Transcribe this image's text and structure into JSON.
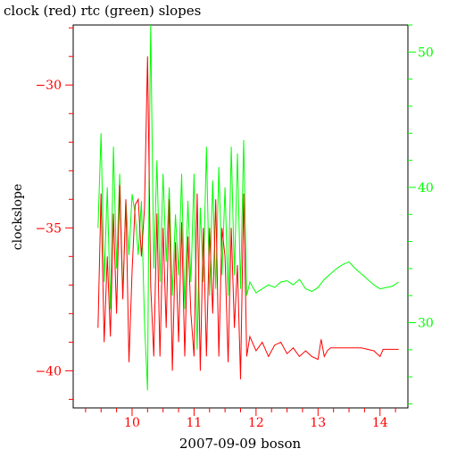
{
  "chart_data": {
    "type": "line",
    "title": "clock (red) rtc (green) slopes",
    "xlabel": "2007-09-09 boson",
    "ylabel": "clockslope",
    "x_ticks": [
      "10",
      "11",
      "12",
      "13",
      "14"
    ],
    "y_left_ticks": [
      "−30",
      "−35",
      "−40"
    ],
    "y_right_ticks": [
      "50",
      "40",
      "30"
    ],
    "xlim": [
      9.05,
      14.45
    ],
    "ylim_left": [
      -41.3,
      -27.9
    ],
    "ylim_right": [
      23.7,
      52.0
    ],
    "grid": false,
    "colors": {
      "left": "#ff0000",
      "right": "#00ff00",
      "x": "#ff0000"
    },
    "series": [
      {
        "name": "clock",
        "axis": "left",
        "color": "#ff0000",
        "x": [
          9.45,
          9.5,
          9.55,
          9.6,
          9.65,
          9.7,
          9.75,
          9.8,
          9.85,
          9.9,
          9.95,
          10.0,
          10.05,
          10.1,
          10.15,
          10.2,
          10.25,
          10.3,
          10.35,
          10.4,
          10.45,
          10.5,
          10.55,
          10.6,
          10.65,
          10.7,
          10.75,
          10.8,
          10.85,
          10.9,
          10.95,
          11.0,
          11.05,
          11.1,
          11.15,
          11.2,
          11.25,
          11.3,
          11.35,
          11.4,
          11.45,
          11.5,
          11.55,
          11.6,
          11.65,
          11.7,
          11.75,
          11.8,
          11.85,
          11.9,
          12.0,
          12.1,
          12.2,
          12.3,
          12.4,
          12.5,
          12.6,
          12.7,
          12.8,
          12.9,
          13.0,
          13.05,
          13.1,
          13.15,
          13.2,
          13.3,
          13.5,
          13.7,
          13.9,
          14.0,
          14.05,
          14.1,
          14.3
        ],
        "y": [
          -38.5,
          -33.8,
          -39.0,
          -36.0,
          -38.8,
          -34.5,
          -38.0,
          -33.5,
          -37.5,
          -34.0,
          -39.7,
          -36.5,
          -34.2,
          -34.0,
          -36.0,
          -34.3,
          -29.0,
          -37.0,
          -39.5,
          -34.5,
          -39.5,
          -35.0,
          -38.5,
          -34.0,
          -40.0,
          -35.5,
          -39.0,
          -34.8,
          -39.5,
          -35.3,
          -38.0,
          -39.5,
          -33.8,
          -40.0,
          -35.0,
          -39.5,
          -35.0,
          -38.0,
          -34.0,
          -39.5,
          -35.0,
          -36.0,
          -39.7,
          -35.0,
          -38.5,
          -36.3,
          -40.3,
          -33.8,
          -39.5,
          -38.8,
          -39.3,
          -39.0,
          -39.5,
          -39.1,
          -39.0,
          -39.4,
          -39.2,
          -39.5,
          -39.3,
          -39.5,
          -39.6,
          -38.9,
          -39.5,
          -39.3,
          -39.2,
          -39.2,
          -39.2,
          -39.2,
          -39.3,
          -39.5,
          -39.25,
          -39.25,
          -39.25
        ]
      },
      {
        "name": "rtc",
        "axis": "right",
        "color": "#00ff00",
        "x": [
          9.45,
          9.5,
          9.55,
          9.6,
          9.65,
          9.7,
          9.75,
          9.8,
          9.85,
          9.9,
          9.95,
          10.0,
          10.05,
          10.1,
          10.15,
          10.2,
          10.25,
          10.28,
          10.3,
          10.35,
          10.4,
          10.45,
          10.5,
          10.55,
          10.6,
          10.65,
          10.7,
          10.75,
          10.8,
          10.85,
          10.9,
          10.95,
          11.0,
          11.05,
          11.1,
          11.15,
          11.2,
          11.25,
          11.3,
          11.35,
          11.4,
          11.45,
          11.5,
          11.55,
          11.6,
          11.65,
          11.7,
          11.75,
          11.8,
          11.85,
          11.9,
          12.0,
          12.1,
          12.2,
          12.3,
          12.4,
          12.5,
          12.6,
          12.7,
          12.8,
          12.9,
          13.0,
          13.1,
          13.2,
          13.3,
          13.4,
          13.5,
          13.6,
          13.7,
          13.8,
          13.9,
          14.0,
          14.1,
          14.2,
          14.3
        ],
        "y": [
          37.0,
          44.0,
          33.0,
          40.0,
          31.0,
          43.0,
          34.0,
          41.0,
          32.0,
          39.0,
          35.0,
          39.5,
          38.0,
          35.0,
          39.0,
          30.0,
          25.0,
          44.0,
          52.0,
          34.0,
          42.0,
          33.0,
          41.0,
          34.5,
          40.0,
          32.0,
          38.0,
          33.5,
          41.0,
          31.0,
          39.0,
          33.0,
          41.0,
          28.0,
          38.5,
          33.0,
          43.0,
          32.0,
          40.5,
          32.5,
          41.5,
          33.5,
          40.0,
          32.0,
          43.0,
          33.5,
          42.5,
          32.5,
          43.5,
          32.0,
          33.0,
          32.2,
          32.5,
          32.8,
          32.6,
          33.0,
          33.1,
          32.8,
          33.2,
          32.5,
          32.3,
          32.6,
          33.2,
          33.6,
          34.0,
          34.3,
          34.5,
          34.0,
          33.6,
          33.2,
          32.8,
          32.5,
          32.6,
          32.7,
          33.0
        ]
      }
    ]
  }
}
